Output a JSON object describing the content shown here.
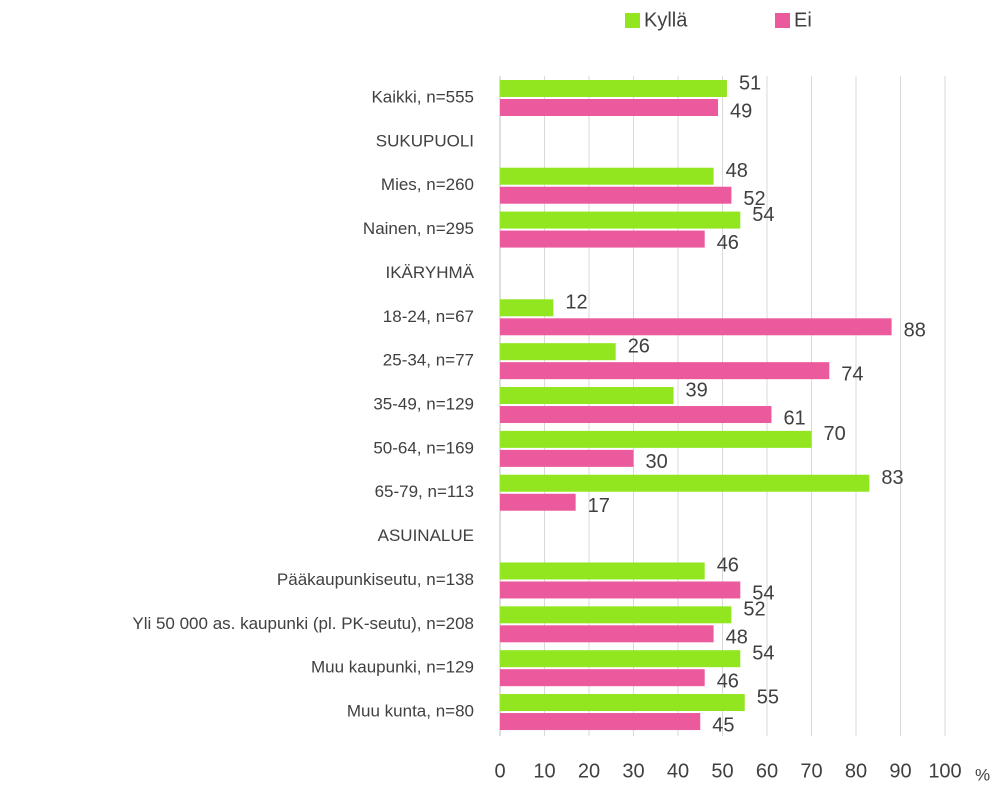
{
  "chart_data": {
    "type": "bar",
    "orientation": "horizontal",
    "categories": [
      "Kaikki, n=555",
      "SUKUPUOLI",
      "Mies, n=260",
      "Nainen, n=295",
      "IKÄRYHMÄ",
      "18-24, n=67",
      "25-34, n=77",
      "35-49, n=129",
      "50-64, n=169",
      "65-79, n=113",
      "ASUINALUE",
      "Pääkaupunkiseutu, n=138",
      "Yli 50 000 as. kaupunki (pl. PK-seutu), n=208",
      "Muu kaupunki, n=129",
      "Muu kunta, n=80"
    ],
    "series": [
      {
        "name": "Kyllä",
        "color": "#92e620",
        "values": [
          51,
          null,
          48,
          54,
          null,
          12,
          26,
          39,
          70,
          83,
          null,
          46,
          52,
          54,
          55
        ]
      },
      {
        "name": "Ei",
        "color": "#ec5a9e",
        "values": [
          49,
          null,
          52,
          46,
          null,
          88,
          74,
          61,
          30,
          17,
          null,
          54,
          48,
          46,
          45
        ]
      }
    ],
    "xlim": [
      0,
      100
    ],
    "xticks": [
      0,
      10,
      20,
      30,
      40,
      50,
      60,
      70,
      80,
      90,
      100
    ],
    "x_unit": "%",
    "grid": true,
    "legend": "top"
  }
}
